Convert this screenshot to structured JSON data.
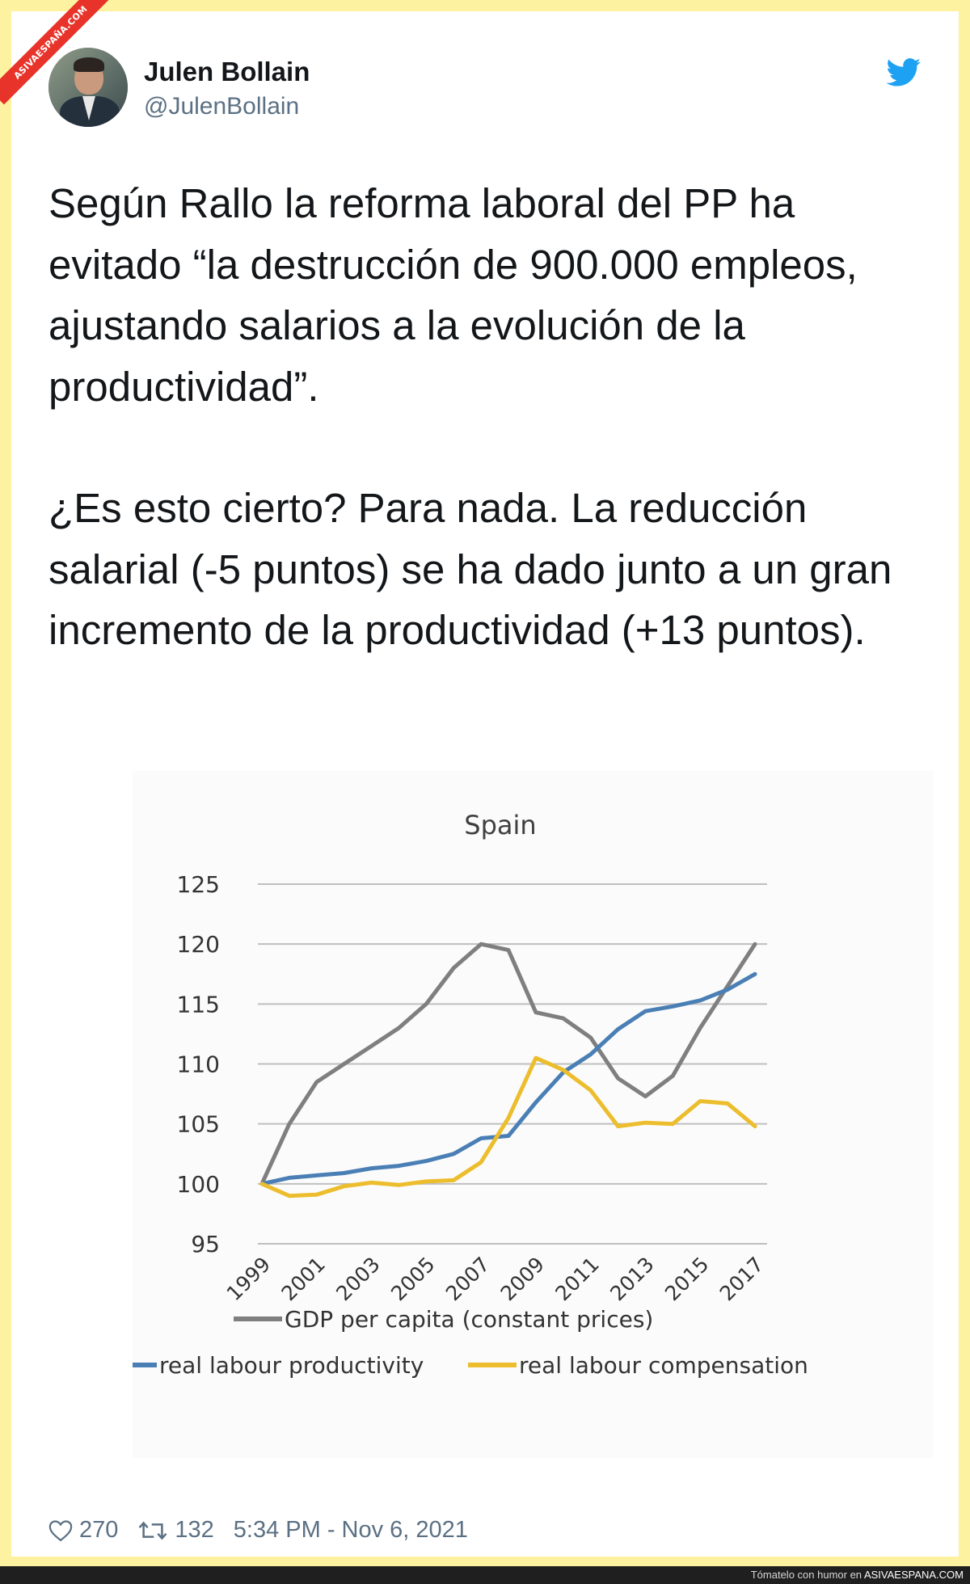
{
  "watermark": {
    "ribbon_text": "ASIVAESPAÑA.COM"
  },
  "tweet": {
    "author_name": "Julen Bollain",
    "author_handle": "@JulenBollain",
    "paragraphs": [
      "Según Rallo la reforma laboral del PP ha evitado “la destrucción de 900.000 empleos, ajustando salarios a la evolución de la productividad”.",
      "¿Es esto cierto? Para nada. La reducción salarial (-5 puntos) se ha dado junto a un gran incremento de la productividad (+13 puntos)."
    ],
    "likes": "270",
    "retweets": "132",
    "timestamp": "5:34 PM - Nov 6, 2021"
  },
  "icons": {
    "platform": "twitter-bird-icon",
    "like": "heart-icon",
    "retweet": "retweet-icon"
  },
  "colors": {
    "gdp": "#7f7f7f",
    "productivity": "#4a7fb5",
    "compensation": "#ecbd2c",
    "twitter_blue": "#1da1f2"
  },
  "chart_data": {
    "type": "line",
    "title": "Spain",
    "x": [
      1999,
      2000,
      2001,
      2002,
      2003,
      2004,
      2005,
      2006,
      2007,
      2008,
      2009,
      2010,
      2011,
      2012,
      2013,
      2014,
      2015,
      2016,
      2017
    ],
    "tick_labels": [
      "1999",
      "2001",
      "2003",
      "2005",
      "2007",
      "2009",
      "2011",
      "2013",
      "2015",
      "2017"
    ],
    "ylim": [
      95,
      125
    ],
    "yticks": [
      95,
      100,
      105,
      110,
      115,
      120,
      125
    ],
    "grid": true,
    "legend_placement": "bottom",
    "series": [
      {
        "name": "GDP per capita (constant prices)",
        "values": [
          100,
          105,
          108.5,
          110,
          111.5,
          113,
          115,
          118,
          120,
          119.5,
          114.3,
          113.8,
          112.2,
          108.8,
          107.3,
          109,
          113,
          116.5,
          120
        ]
      },
      {
        "name": "real labour productivity",
        "values": [
          100,
          100.5,
          100.7,
          100.9,
          101.3,
          101.5,
          101.9,
          102.5,
          103.8,
          104,
          106.8,
          109.3,
          110.8,
          112.9,
          114.4,
          114.8,
          115.3,
          116.2,
          117.5
        ]
      },
      {
        "name": "real labour compensation",
        "values": [
          100,
          99,
          99.1,
          99.8,
          100.1,
          99.9,
          100.2,
          100.3,
          101.8,
          105.5,
          110.5,
          109.5,
          107.8,
          104.8,
          105.1,
          105,
          106.9,
          106.7,
          104.8
        ]
      }
    ]
  },
  "bottom_bar": {
    "text": "Tómatelo con humor en",
    "brand": "ASIVAESPANA.COM"
  }
}
